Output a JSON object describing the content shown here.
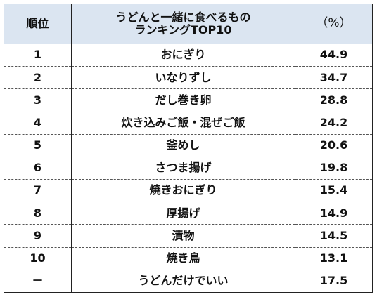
{
  "table": {
    "header": {
      "rank": "順位",
      "title_line1": "うどんと一緒に食べるもの",
      "title_line2": "ランキングTOP10",
      "unit": "（%）"
    },
    "rows": [
      {
        "rank": "1",
        "item": "おにぎり",
        "value": "44.9"
      },
      {
        "rank": "2",
        "item": "いなりずし",
        "value": "34.7"
      },
      {
        "rank": "3",
        "item": "だし巻き卵",
        "value": "28.8"
      },
      {
        "rank": "4",
        "item": "炊き込みご飯・混ぜご飯",
        "value": "24.2"
      },
      {
        "rank": "5",
        "item": "釜めし",
        "value": "20.6"
      },
      {
        "rank": "6",
        "item": "さつま揚げ",
        "value": "19.8"
      },
      {
        "rank": "7",
        "item": "焼きおにぎり",
        "value": "15.4"
      },
      {
        "rank": "8",
        "item": "厚揚げ",
        "value": "14.9"
      },
      {
        "rank": "9",
        "item": "漬物",
        "value": "14.5"
      },
      {
        "rank": "10",
        "item": "焼き鳥",
        "value": "13.1"
      },
      {
        "rank": "－",
        "item": "うどんだけでいい",
        "value": "17.5"
      }
    ]
  }
}
